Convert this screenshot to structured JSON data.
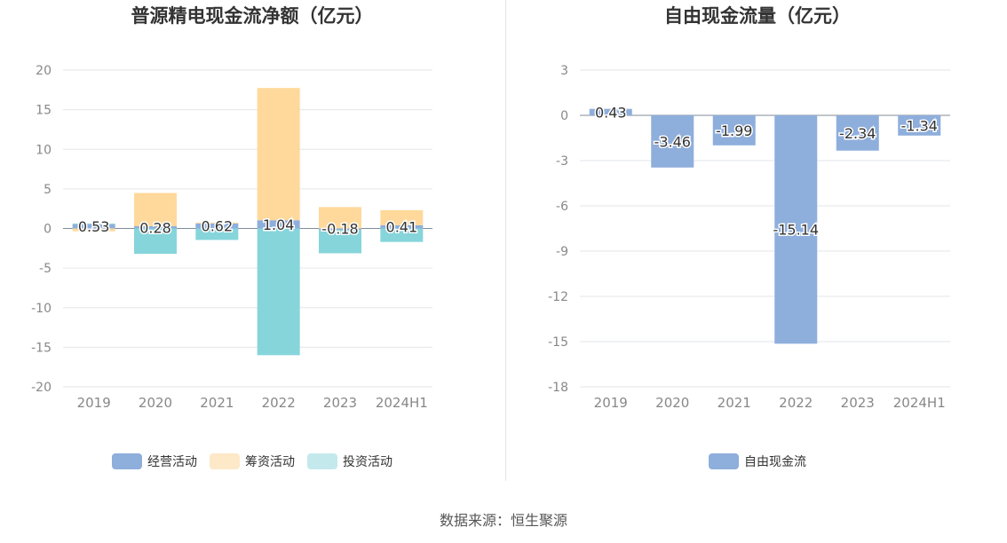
{
  "chart_data": [
    {
      "type": "bar",
      "stacked": true,
      "title": "普源精电现金流净额（亿元）",
      "categories": [
        "2019",
        "2020",
        "2021",
        "2022",
        "2023",
        "2024H1"
      ],
      "ylim": [
        -20,
        20
      ],
      "yticks": [
        20,
        15,
        10,
        5,
        0,
        -5,
        -10,
        -15,
        -20
      ],
      "grid": true,
      "legend_position": "bottom",
      "series": [
        {
          "name": "经营活动",
          "color": "#8eaedc",
          "values": [
            0.53,
            0.28,
            0.62,
            1.04,
            -0.18,
            0.41
          ]
        },
        {
          "name": "筹资活动",
          "color": "#ffd99b",
          "legend_color": "#fde8c8",
          "values": [
            -0.35,
            4.2,
            0.12,
            16.7,
            2.7,
            1.9
          ]
        },
        {
          "name": "投资活动",
          "color": "#86d5db",
          "legend_color": "#c4e9ec",
          "values": [
            0.1,
            -3.2,
            -1.45,
            -16.0,
            -2.95,
            -1.7
          ]
        }
      ],
      "data_labels": [
        "0.53",
        "0.28",
        "0.62",
        "1.04",
        "-0.18",
        "0.41"
      ]
    },
    {
      "type": "bar",
      "title": "自由现金流量（亿元）",
      "categories": [
        "2019",
        "2020",
        "2021",
        "2022",
        "2023",
        "2024H1"
      ],
      "ylim": [
        -18,
        3
      ],
      "yticks": [
        3,
        0,
        -3,
        -6,
        -9,
        -12,
        -15,
        -18
      ],
      "grid": true,
      "legend_position": "bottom",
      "series": [
        {
          "name": "自由现金流",
          "color": "#8eaedc",
          "values": [
            0.43,
            -3.46,
            -1.99,
            -15.14,
            -2.34,
            -1.34
          ]
        }
      ],
      "data_labels": [
        "0.43",
        "-3.46",
        "-1.99",
        "-15.14",
        "-2.34",
        "-1.34"
      ]
    }
  ],
  "footer": {
    "source": "数据来源：恒生聚源"
  }
}
